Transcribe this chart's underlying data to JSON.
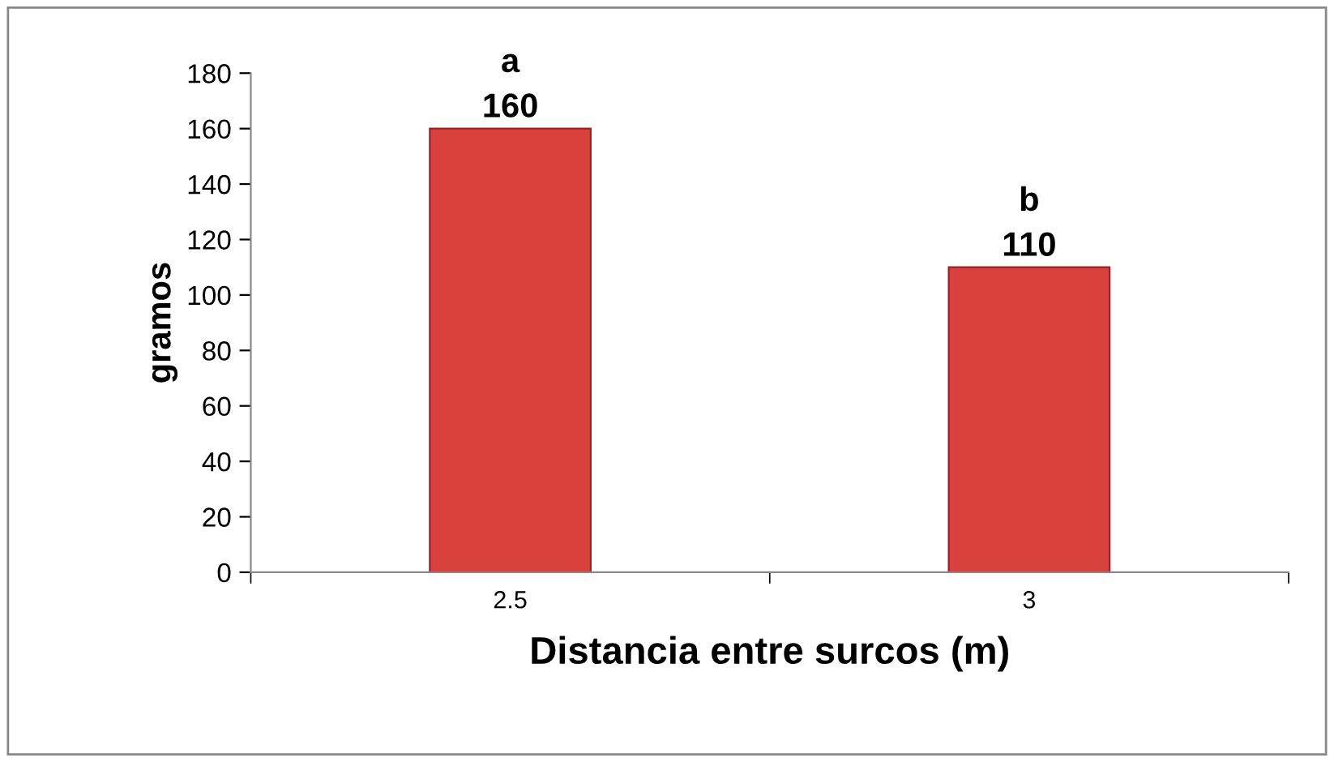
{
  "chart_data": {
    "type": "bar",
    "categories": [
      "2.5",
      "3"
    ],
    "values": [
      160,
      110
    ],
    "color": "#d9413c",
    "xlabel": "Distancia entre surcos (m)",
    "ylabel": "gramos",
    "ylim": [
      0,
      180
    ],
    "yticks": [
      0,
      20,
      40,
      60,
      80,
      100,
      120,
      140,
      160,
      180
    ],
    "data_labels": true,
    "grid": false,
    "legend": false,
    "annotations": [
      {
        "text": "a",
        "x": "2.5",
        "y": 160
      },
      {
        "text": "b",
        "x": "3",
        "y": 110
      }
    ]
  }
}
